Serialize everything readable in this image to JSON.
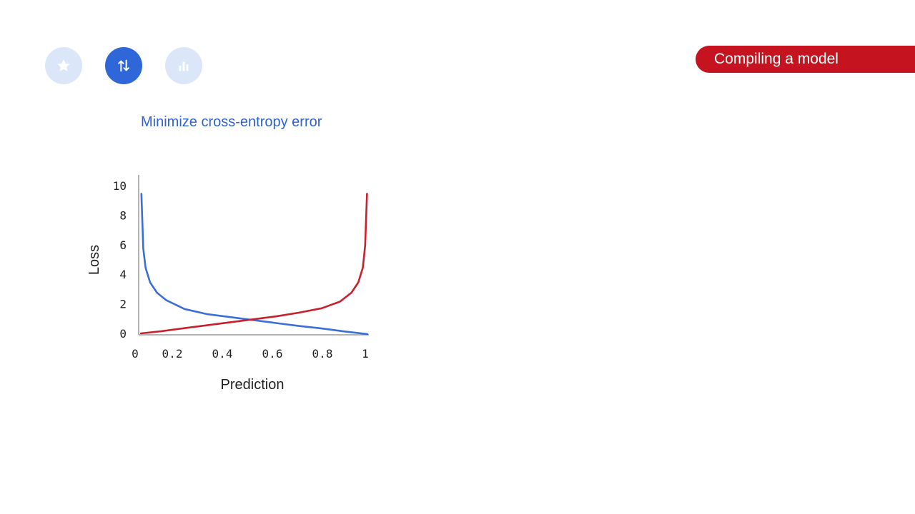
{
  "header": {
    "section_label": "Compiling a model",
    "icons": [
      {
        "name": "star-icon",
        "active": false
      },
      {
        "name": "swap-vertical-icon",
        "active": true
      },
      {
        "name": "bar-chart-icon",
        "active": false
      }
    ],
    "colors": {
      "accent": "#c5141f",
      "active_icon": "#2f66d8",
      "inactive_icon": "#dce6f9"
    }
  },
  "chart_data": {
    "type": "line",
    "title": "Minimize cross-entropy error",
    "xlabel": "Prediction",
    "ylabel": "Loss",
    "xlim": [
      0,
      1
    ],
    "ylim": [
      0,
      10
    ],
    "xticks": [
      "0",
      "0.2",
      "0.4",
      "0.6",
      "0.8",
      "1"
    ],
    "yticks": [
      "0",
      "2",
      "4",
      "6",
      "8",
      "10"
    ],
    "grid": false,
    "series": [
      {
        "color": "#3b6fd8",
        "formula": "-log(x)",
        "x": [
          0.012,
          0.02,
          0.03,
          0.05,
          0.08,
          0.12,
          0.2,
          0.3,
          0.4,
          0.5,
          0.6,
          0.7,
          0.8,
          0.9,
          1.0
        ],
        "y": [
          9.5,
          5.8,
          4.5,
          3.5,
          2.8,
          2.3,
          1.7,
          1.35,
          1.15,
          0.95,
          0.75,
          0.55,
          0.38,
          0.18,
          0.0
        ]
      },
      {
        "color": "#c8202c",
        "formula": "-log(1-x)",
        "x": [
          0.01,
          0.1,
          0.2,
          0.3,
          0.4,
          0.5,
          0.6,
          0.7,
          0.8,
          0.88,
          0.93,
          0.96,
          0.98,
          0.99,
          0.998
        ],
        "y": [
          0.05,
          0.2,
          0.4,
          0.6,
          0.8,
          1.0,
          1.2,
          1.45,
          1.75,
          2.2,
          2.8,
          3.5,
          4.5,
          6.0,
          9.5
        ]
      }
    ]
  }
}
